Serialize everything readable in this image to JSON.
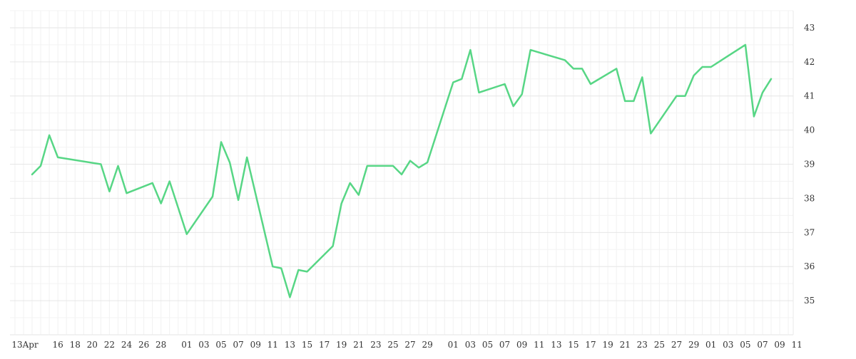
{
  "chart_data": {
    "type": "line",
    "title": "",
    "xlabel": "",
    "ylabel": "",
    "grid": true,
    "y_axis_position": "right",
    "ylim": [
      34,
      43.5
    ],
    "y_ticks": [
      35,
      36,
      37,
      38,
      39,
      40,
      41,
      42,
      43
    ],
    "x_tick_labels": [
      "13Apr",
      "16",
      "18",
      "20",
      "22",
      "24",
      "26",
      "28",
      "01",
      "03",
      "05",
      "07",
      "09",
      "11",
      "13",
      "15",
      "17",
      "19",
      "21",
      "23",
      "25",
      "27",
      "29",
      "01",
      "03",
      "05",
      "07",
      "09",
      "11",
      "13",
      "15",
      "17",
      "19",
      "21",
      "23",
      "25",
      "27",
      "29",
      "01",
      "03",
      "05",
      "07",
      "09",
      "11"
    ],
    "line_color": "#57d685",
    "series": [
      {
        "values": [
          [
            "Apr 13",
            38.7
          ],
          [
            "Apr 14",
            38.95
          ],
          [
            "Apr 15",
            39.85
          ],
          [
            "Apr 16",
            39.2
          ],
          [
            "Apr 21",
            39.0
          ],
          [
            "Apr 22",
            38.2
          ],
          [
            "Apr 23",
            38.95
          ],
          [
            "Apr 24",
            38.15
          ],
          [
            "Apr 27",
            38.45
          ],
          [
            "Apr 28",
            37.85
          ],
          [
            "Apr 29",
            38.5
          ],
          [
            "May 01",
            36.95
          ],
          [
            "May 04",
            38.05
          ],
          [
            "May 05",
            39.65
          ],
          [
            "May 06",
            39.05
          ],
          [
            "May 07",
            37.95
          ],
          [
            "May 08",
            39.2
          ],
          [
            "May 11",
            36.0
          ],
          [
            "May 12",
            35.95
          ],
          [
            "May 13",
            35.1
          ],
          [
            "May 14",
            35.9
          ],
          [
            "May 15",
            35.85
          ],
          [
            "May 18",
            36.6
          ],
          [
            "May 19",
            37.85
          ],
          [
            "May 20",
            38.45
          ],
          [
            "May 21",
            38.1
          ],
          [
            "May 22",
            38.95
          ],
          [
            "May 25",
            38.95
          ],
          [
            "May 26",
            38.7
          ],
          [
            "May 27",
            39.1
          ],
          [
            "May 28",
            38.9
          ],
          [
            "May 29",
            39.05
          ],
          [
            "Jun 01",
            41.4
          ],
          [
            "Jun 02",
            41.5
          ],
          [
            "Jun 03",
            42.35
          ],
          [
            "Jun 04",
            41.1
          ],
          [
            "Jun 07",
            41.35
          ],
          [
            "Jun 08",
            40.7
          ],
          [
            "Jun 09",
            41.05
          ],
          [
            "Jun 10",
            42.35
          ],
          [
            "Jun 14",
            42.05
          ],
          [
            "Jun 15",
            41.8
          ],
          [
            "Jun 16",
            41.8
          ],
          [
            "Jun 17",
            41.35
          ],
          [
            "Jun 20",
            41.8
          ],
          [
            "Jun 21",
            40.85
          ],
          [
            "Jun 22",
            40.85
          ],
          [
            "Jun 23",
            41.55
          ],
          [
            "Jun 24",
            39.9
          ],
          [
            "Jun 27",
            41.0
          ],
          [
            "Jun 28",
            41.0
          ],
          [
            "Jun 29",
            41.6
          ],
          [
            "Jun 30",
            41.85
          ],
          [
            "Jul 01",
            41.85
          ],
          [
            "Jul 05",
            42.5
          ],
          [
            "Jul 06",
            40.4
          ],
          [
            "Jul 07",
            41.1
          ],
          [
            "Jul 08",
            41.5
          ]
        ]
      }
    ]
  }
}
